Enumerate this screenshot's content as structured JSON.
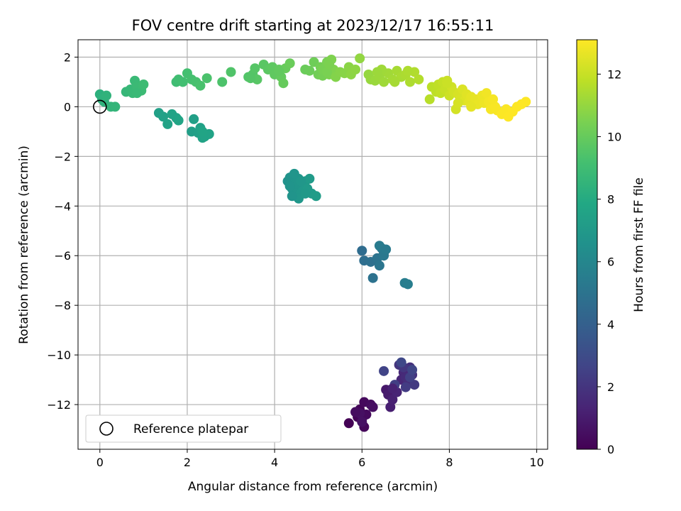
{
  "chart_data": {
    "type": "scatter",
    "title": "FOV centre drift starting at 2023/12/17 16:55:11",
    "xlabel": "Angular distance from reference (arcmin)",
    "ylabel": "Rotation from reference (arcmin)",
    "xlim": [
      -0.5,
      10.25
    ],
    "ylim": [
      -13.8,
      2.7
    ],
    "xticks": [
      0,
      2,
      4,
      6,
      8,
      10
    ],
    "yticks": [
      2,
      0,
      -2,
      -4,
      -6,
      -8,
      -10,
      -12
    ],
    "grid": true,
    "colormap": "viridis",
    "colorbar": {
      "label": "Hours from first FF file",
      "range": [
        0,
        13.1
      ],
      "ticks": [
        0,
        2,
        4,
        6,
        8,
        10,
        12
      ]
    },
    "reference": {
      "x": 0,
      "y": 0
    },
    "legend": {
      "placement": "lower-left",
      "entries": [
        "Reference platepar"
      ]
    },
    "points": [
      [
        5.7,
        -12.75,
        0.05
      ],
      [
        5.9,
        -12.5,
        0.1
      ],
      [
        5.95,
        -12.2,
        0.15
      ],
      [
        6.0,
        -12.6,
        0.2
      ],
      [
        6.05,
        -12.9,
        0.25
      ],
      [
        6.05,
        -11.9,
        0.3
      ],
      [
        6.1,
        -12.4,
        0.35
      ],
      [
        6.2,
        -12.0,
        0.4
      ],
      [
        6.25,
        -12.1,
        0.5
      ],
      [
        5.95,
        -12.35,
        0.55
      ],
      [
        6.0,
        -12.7,
        0.6
      ],
      [
        5.85,
        -12.3,
        0.45
      ],
      [
        6.55,
        -11.4,
        0.9
      ],
      [
        6.6,
        -11.6,
        1.0
      ],
      [
        6.65,
        -12.1,
        1.1
      ],
      [
        6.7,
        -11.8,
        1.2
      ],
      [
        6.8,
        -11.5,
        1.3
      ],
      [
        6.9,
        -11.0,
        1.4
      ],
      [
        6.95,
        -10.7,
        1.5
      ],
      [
        7.0,
        -10.9,
        1.6
      ],
      [
        7.05,
        -11.1,
        1.7
      ],
      [
        7.1,
        -10.5,
        1.8
      ],
      [
        7.15,
        -10.8,
        1.9
      ],
      [
        6.85,
        -10.4,
        2.0
      ],
      [
        6.95,
        -10.5,
        2.1
      ],
      [
        7.2,
        -11.2,
        2.2
      ],
      [
        7.0,
        -11.3,
        2.3
      ],
      [
        6.75,
        -11.2,
        2.4
      ],
      [
        7.1,
        -10.9,
        2.5
      ],
      [
        6.5,
        -10.65,
        2.6
      ],
      [
        7.15,
        -10.6,
        2.7
      ],
      [
        6.9,
        -10.3,
        2.8
      ],
      [
        6.7,
        -11.35,
        1.25
      ],
      [
        6.0,
        -5.8,
        4.6
      ],
      [
        6.05,
        -6.2,
        4.7
      ],
      [
        6.2,
        -6.25,
        4.8
      ],
      [
        6.25,
        -6.9,
        4.9
      ],
      [
        6.35,
        -6.1,
        5.0
      ],
      [
        6.4,
        -6.4,
        5.1
      ],
      [
        6.45,
        -5.7,
        5.2
      ],
      [
        6.5,
        -5.9,
        5.3
      ],
      [
        6.4,
        -5.6,
        5.4
      ],
      [
        6.5,
        -6.0,
        5.25
      ],
      [
        6.55,
        -5.75,
        5.35
      ],
      [
        6.98,
        -7.1,
        5.5
      ],
      [
        7.05,
        -7.15,
        5.55
      ],
      [
        4.3,
        -3.0,
        6.6
      ],
      [
        4.35,
        -2.85,
        6.65
      ],
      [
        4.4,
        -3.3,
        6.7
      ],
      [
        4.45,
        -3.1,
        6.75
      ],
      [
        4.5,
        -3.4,
        6.8
      ],
      [
        4.55,
        -2.9,
        6.85
      ],
      [
        4.6,
        -3.5,
        6.9
      ],
      [
        4.65,
        -3.2,
        6.95
      ],
      [
        4.7,
        -3.0,
        7.0
      ],
      [
        4.75,
        -3.3,
        7.05
      ],
      [
        4.8,
        -2.9,
        7.1
      ],
      [
        4.55,
        -3.7,
        6.9
      ],
      [
        4.85,
        -3.5,
        7.1
      ],
      [
        4.95,
        -3.6,
        7.15
      ],
      [
        4.4,
        -3.6,
        6.7
      ],
      [
        4.5,
        -3.1,
        6.8
      ],
      [
        4.35,
        -3.2,
        6.7
      ],
      [
        4.7,
        -3.5,
        7.0
      ],
      [
        4.45,
        -2.7,
        6.75
      ],
      [
        4.6,
        -3.0,
        6.9
      ],
      [
        1.35,
        -0.25,
        7.4
      ],
      [
        1.45,
        -0.4,
        7.45
      ],
      [
        1.55,
        -0.7,
        7.5
      ],
      [
        1.65,
        -0.3,
        7.55
      ],
      [
        1.75,
        -0.45,
        7.6
      ],
      [
        1.8,
        -0.55,
        7.65
      ],
      [
        2.1,
        -1.0,
        7.3
      ],
      [
        2.15,
        -0.5,
        7.35
      ],
      [
        2.25,
        -1.05,
        7.4
      ],
      [
        2.3,
        -0.85,
        7.45
      ],
      [
        2.35,
        -1.25,
        7.5
      ],
      [
        2.4,
        -1.2,
        7.55
      ],
      [
        2.5,
        -1.1,
        7.6
      ],
      [
        2.35,
        -1.0,
        7.65
      ],
      [
        0.0,
        0.5,
        8.3
      ],
      [
        0.05,
        0.3,
        8.35
      ],
      [
        0.1,
        0.2,
        8.4
      ],
      [
        0.15,
        0.45,
        8.45
      ],
      [
        0.25,
        0.0,
        8.5
      ],
      [
        0.35,
        0.0,
        8.55
      ],
      [
        0.6,
        0.6,
        8.65
      ],
      [
        0.7,
        0.7,
        8.7
      ],
      [
        0.75,
        0.55,
        8.75
      ],
      [
        0.8,
        1.05,
        8.8
      ],
      [
        0.85,
        0.8,
        8.85
      ],
      [
        0.95,
        0.65,
        8.9
      ],
      [
        1.0,
        0.9,
        8.95
      ],
      [
        0.85,
        0.55,
        8.8
      ],
      [
        1.75,
        1.0,
        9.0
      ],
      [
        1.8,
        1.1,
        9.05
      ],
      [
        1.9,
        1.0,
        9.1
      ],
      [
        2.0,
        1.35,
        9.15
      ],
      [
        2.1,
        1.1,
        9.2
      ],
      [
        2.2,
        1.0,
        9.25
      ],
      [
        2.3,
        0.85,
        9.3
      ],
      [
        2.45,
        1.15,
        9.35
      ],
      [
        2.8,
        1.0,
        9.4
      ],
      [
        3.0,
        1.4,
        9.45
      ],
      [
        3.4,
        1.2,
        9.5
      ],
      [
        3.5,
        1.3,
        9.55
      ],
      [
        3.55,
        1.55,
        9.6
      ],
      [
        3.6,
        1.1,
        9.65
      ],
      [
        3.75,
        1.7,
        9.7
      ],
      [
        3.85,
        1.5,
        9.75
      ],
      [
        3.95,
        1.6,
        9.8
      ],
      [
        4.0,
        1.3,
        9.85
      ],
      [
        4.1,
        1.5,
        9.9
      ],
      [
        4.15,
        1.2,
        9.95
      ],
      [
        4.2,
        0.95,
        10.0
      ],
      [
        4.25,
        1.55,
        10.05
      ],
      [
        4.35,
        1.75,
        10.1
      ],
      [
        3.45,
        1.15,
        9.55
      ],
      [
        4.1,
        1.45,
        9.9
      ],
      [
        4.7,
        1.5,
        10.1
      ],
      [
        4.8,
        1.45,
        10.15
      ],
      [
        4.9,
        1.8,
        10.2
      ],
      [
        5.0,
        1.3,
        10.25
      ],
      [
        5.05,
        1.6,
        10.3
      ],
      [
        5.1,
        1.25,
        10.35
      ],
      [
        5.15,
        1.55,
        10.4
      ],
      [
        5.2,
        1.8,
        10.45
      ],
      [
        5.25,
        1.3,
        10.5
      ],
      [
        5.3,
        1.9,
        10.55
      ],
      [
        5.35,
        1.5,
        10.6
      ],
      [
        5.4,
        1.2,
        10.65
      ],
      [
        5.5,
        1.4,
        10.7
      ],
      [
        5.6,
        1.35,
        10.75
      ],
      [
        5.7,
        1.6,
        10.8
      ],
      [
        5.75,
        1.3,
        10.85
      ],
      [
        5.85,
        1.5,
        10.9
      ],
      [
        5.95,
        1.95,
        10.95
      ],
      [
        5.1,
        1.5,
        10.4
      ],
      [
        5.2,
        1.4,
        10.45
      ],
      [
        5.25,
        1.7,
        10.5
      ],
      [
        6.15,
        1.3,
        11.0
      ],
      [
        6.2,
        1.1,
        11.05
      ],
      [
        6.3,
        1.05,
        11.1
      ],
      [
        6.4,
        1.2,
        11.15
      ],
      [
        6.5,
        1.0,
        11.2
      ],
      [
        6.6,
        1.35,
        11.25
      ],
      [
        6.7,
        1.1,
        11.3
      ],
      [
        6.8,
        1.45,
        11.35
      ],
      [
        6.9,
        1.2,
        11.4
      ],
      [
        7.0,
        1.3,
        11.45
      ],
      [
        7.1,
        1.0,
        11.5
      ],
      [
        7.2,
        1.4,
        11.55
      ],
      [
        7.3,
        1.1,
        11.6
      ],
      [
        6.45,
        1.5,
        11.2
      ],
      [
        6.75,
        1.0,
        11.35
      ],
      [
        7.05,
        1.45,
        11.5
      ],
      [
        6.35,
        1.4,
        11.15
      ],
      [
        7.55,
        0.3,
        11.7
      ],
      [
        7.6,
        0.8,
        11.75
      ],
      [
        7.7,
        0.6,
        11.8
      ],
      [
        7.75,
        0.9,
        11.85
      ],
      [
        7.8,
        0.55,
        11.9
      ],
      [
        7.85,
        1.0,
        11.95
      ],
      [
        7.9,
        0.7,
        12.0
      ],
      [
        7.95,
        1.05,
        12.05
      ],
      [
        8.0,
        0.45,
        12.1
      ],
      [
        8.05,
        0.8,
        12.15
      ],
      [
        8.1,
        0.6,
        12.2
      ],
      [
        8.15,
        -0.1,
        12.25
      ],
      [
        8.2,
        0.5,
        12.3
      ],
      [
        8.25,
        0.3,
        12.35
      ],
      [
        8.3,
        0.7,
        12.4
      ],
      [
        8.35,
        0.25,
        12.45
      ],
      [
        8.4,
        0.5,
        12.5
      ],
      [
        8.45,
        0.2,
        12.55
      ],
      [
        8.5,
        0.4,
        12.6
      ],
      [
        8.6,
        0.3,
        12.65
      ],
      [
        8.65,
        0.1,
        12.7
      ],
      [
        8.75,
        0.45,
        12.75
      ],
      [
        8.8,
        0.15,
        12.8
      ],
      [
        8.85,
        0.55,
        12.85
      ],
      [
        8.9,
        0.2,
        12.9
      ],
      [
        8.95,
        -0.1,
        12.95
      ],
      [
        9.05,
        0.0,
        13.0
      ],
      [
        9.1,
        -0.15,
        13.0
      ],
      [
        9.2,
        -0.3,
        13.05
      ],
      [
        9.3,
        -0.1,
        13.05
      ],
      [
        9.35,
        -0.4,
        13.1
      ],
      [
        9.45,
        -0.2,
        13.1
      ],
      [
        9.55,
        0.0,
        13.1
      ],
      [
        9.65,
        0.1,
        13.1
      ],
      [
        9.75,
        0.2,
        13.1
      ],
      [
        7.95,
        0.95,
        12.05
      ],
      [
        8.2,
        0.15,
        12.3
      ],
      [
        8.5,
        0.0,
        12.6
      ],
      [
        9.0,
        0.3,
        12.95
      ]
    ]
  }
}
